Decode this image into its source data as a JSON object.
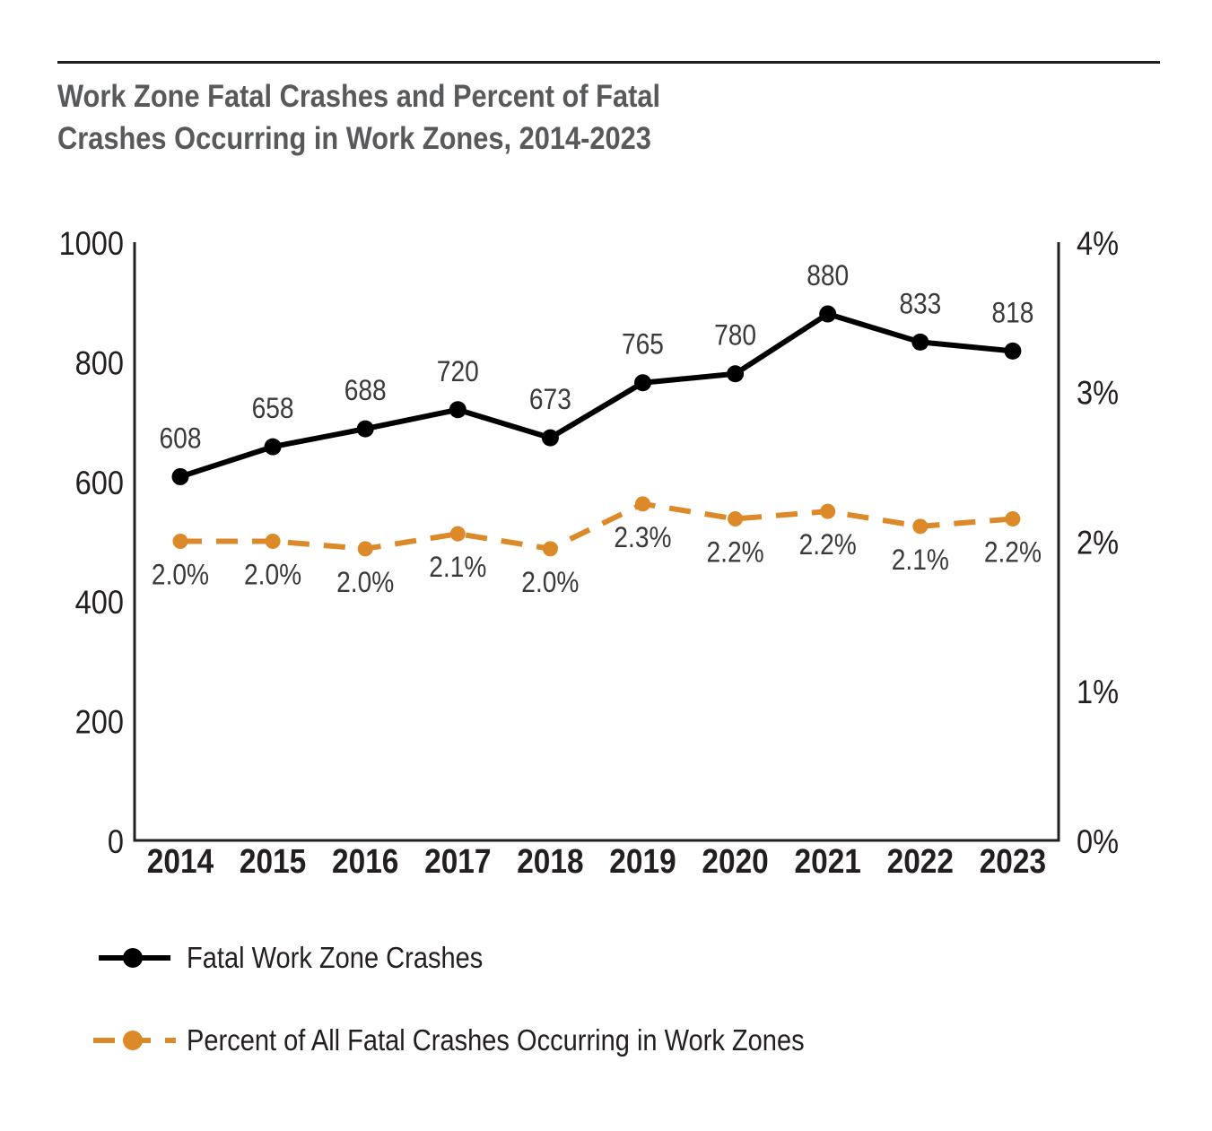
{
  "title_lines": [
    "Work Zone Fatal Crashes and Percent of Fatal",
    "Crashes Occurring in Work Zones, 2014-2023"
  ],
  "colors": {
    "crashes": "#000000",
    "percent": "#dc8a29",
    "title": "#58595b",
    "axis": "#231f20",
    "label": "#3a3a3c"
  },
  "chart_data": {
    "type": "line",
    "title": "Work Zone Fatal Crashes and Percent of Fatal Crashes Occurring in Work Zones, 2014-2023",
    "categories": [
      "2014",
      "2015",
      "2016",
      "2017",
      "2018",
      "2019",
      "2020",
      "2021",
      "2022",
      "2023"
    ],
    "y_left": {
      "range": [
        0,
        1000
      ],
      "ticks": [
        0,
        200,
        400,
        600,
        800,
        1000
      ],
      "tick_labels": [
        "0",
        "200",
        "400",
        "600",
        "800",
        "1000"
      ]
    },
    "y_right": {
      "range": [
        0,
        4
      ],
      "ticks": [
        0,
        1,
        2,
        3,
        4
      ],
      "tick_labels": [
        "0%",
        "1%",
        "2%",
        "3%",
        "4%"
      ]
    },
    "grid": false,
    "legend_position": "bottom-left",
    "series": [
      {
        "name": "Fatal Work Zone Crashes",
        "axis": "left",
        "style": "solid",
        "values": [
          608,
          658,
          688,
          720,
          673,
          765,
          780,
          880,
          833,
          818
        ],
        "labels": [
          "608",
          "658",
          "688",
          "720",
          "673",
          "765",
          "780",
          "880",
          "833",
          "818"
        ]
      },
      {
        "name": "Percent of All Fatal Crashes Occurring in Work Zones",
        "axis": "right",
        "style": "dashed",
        "values": [
          2.0,
          2.0,
          1.95,
          2.05,
          1.95,
          2.25,
          2.15,
          2.2,
          2.1,
          2.15
        ],
        "labels": [
          "2.0%",
          "2.0%",
          "2.0%",
          "2.1%",
          "2.0%",
          "2.3%",
          "2.2%",
          "2.2%",
          "2.1%",
          "2.2%"
        ]
      }
    ]
  }
}
